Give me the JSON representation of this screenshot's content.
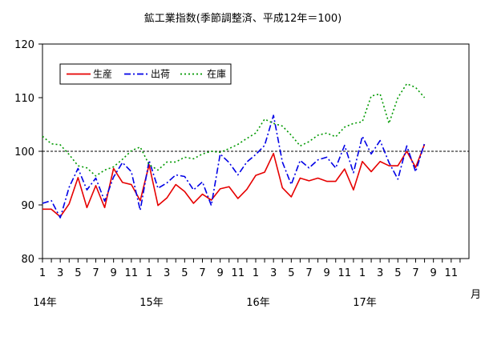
{
  "chart_data": {
    "type": "line",
    "title": "鉱工業指数(季節調整済、平成12年＝100)",
    "ylim": [
      80,
      120
    ],
    "yticks": [
      80,
      90,
      100,
      110,
      120
    ],
    "reference_line": 100,
    "xtick_labels": [
      "1",
      "3",
      "5",
      "7",
      "9",
      "11",
      "1",
      "3",
      "5",
      "7",
      "9",
      "11",
      "1",
      "3",
      "5",
      "7",
      "9",
      "11",
      "1",
      "3",
      "5",
      "7",
      "9",
      "11"
    ],
    "xtick_months": [
      1,
      3,
      5,
      7,
      9,
      11,
      13,
      15,
      17,
      19,
      21,
      23,
      25,
      27,
      29,
      31,
      33,
      35,
      37,
      39,
      41,
      43,
      45,
      47
    ],
    "year_labels": [
      {
        "label": "14年",
        "month": 1
      },
      {
        "label": "15年",
        "month": 13
      },
      {
        "label": "16年",
        "month": 25
      },
      {
        "label": "17年",
        "month": 37
      }
    ],
    "unit_label": "月",
    "legend_position": "top-left",
    "series": [
      {
        "name": "生産",
        "color": "#e60000",
        "style": "solid",
        "values": [
          89.2,
          89.2,
          87.8,
          90.2,
          95.1,
          89.5,
          93.6,
          89.5,
          96.8,
          94.2,
          93.8,
          90.8,
          97.5,
          89.9,
          91.3,
          93.8,
          92.5,
          90.3,
          92.0,
          90.9,
          93.0,
          93.4,
          91.2,
          92.9,
          95.5,
          96.1,
          99.6,
          93.2,
          91.5,
          95.0,
          94.5,
          95.0,
          94.4,
          94.4,
          96.7,
          92.8,
          98.1,
          96.2,
          98.1,
          97.3,
          97.3,
          100.0,
          97.0,
          101.3
        ]
      },
      {
        "name": "出荷",
        "color": "#0000e6",
        "style": "dashdot",
        "values": [
          90.3,
          90.8,
          87.6,
          93.3,
          96.8,
          92.8,
          95.0,
          90.7,
          95.2,
          97.9,
          96.2,
          89.0,
          98.3,
          93.1,
          94.1,
          95.6,
          95.3,
          92.8,
          94.3,
          89.9,
          99.5,
          97.9,
          95.6,
          98.0,
          99.4,
          101.1,
          106.7,
          98.0,
          93.8,
          98.3,
          96.9,
          98.4,
          98.9,
          96.9,
          101.1,
          96.0,
          102.8,
          99.5,
          102.0,
          97.9,
          94.8,
          101.0,
          96.2,
          101.5
        ]
      },
      {
        "name": "在庫",
        "color": "#009900",
        "style": "dotted",
        "values": [
          102.8,
          101.4,
          101.2,
          99.4,
          97.3,
          96.9,
          95.4,
          96.5,
          97.1,
          98.5,
          100.1,
          100.8,
          97.5,
          96.5,
          98.0,
          98.0,
          98.9,
          98.6,
          99.5,
          100.0,
          99.8,
          100.5,
          101.3,
          102.4,
          103.4,
          106.0,
          105.2,
          104.7,
          103.0,
          101.0,
          101.8,
          103.0,
          103.4,
          102.7,
          104.5,
          105.2,
          105.5,
          110.3,
          110.7,
          105.2,
          110.0,
          112.6,
          111.9,
          110.0
        ]
      }
    ]
  }
}
